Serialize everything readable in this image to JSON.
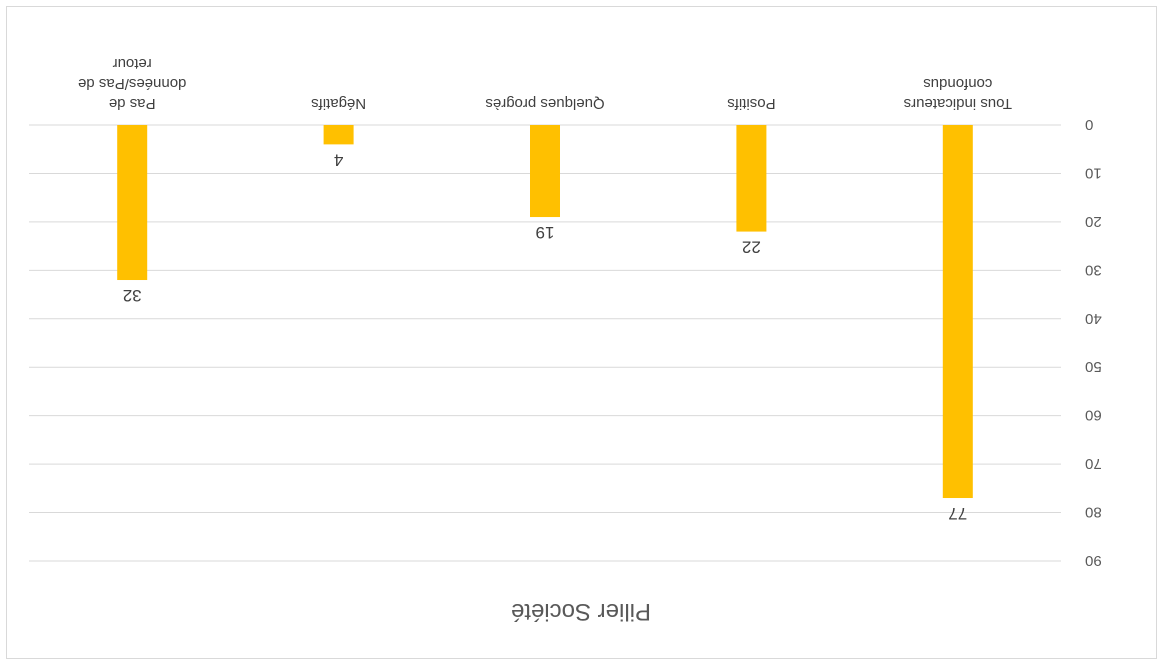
{
  "chart_data": {
    "type": "bar",
    "title": "Pilier Société",
    "categories": [
      [
        "Tous indicateurs",
        "confondus"
      ],
      [
        "Positifs"
      ],
      [
        "Quelques progrès"
      ],
      [
        "Négatifs"
      ],
      [
        "Pas de",
        "données/Pas de",
        "retour"
      ]
    ],
    "values": [
      77,
      22,
      19,
      4,
      32
    ],
    "data_labels": [
      "77",
      "22",
      "19",
      "4",
      "32"
    ],
    "yticks": [
      "0",
      "10",
      "20",
      "30",
      "40",
      "50",
      "60",
      "70",
      "80",
      "90"
    ],
    "ylim": [
      0,
      90
    ],
    "grid": true,
    "bar_color": "#FFC000",
    "orientation": "rotated-180"
  }
}
